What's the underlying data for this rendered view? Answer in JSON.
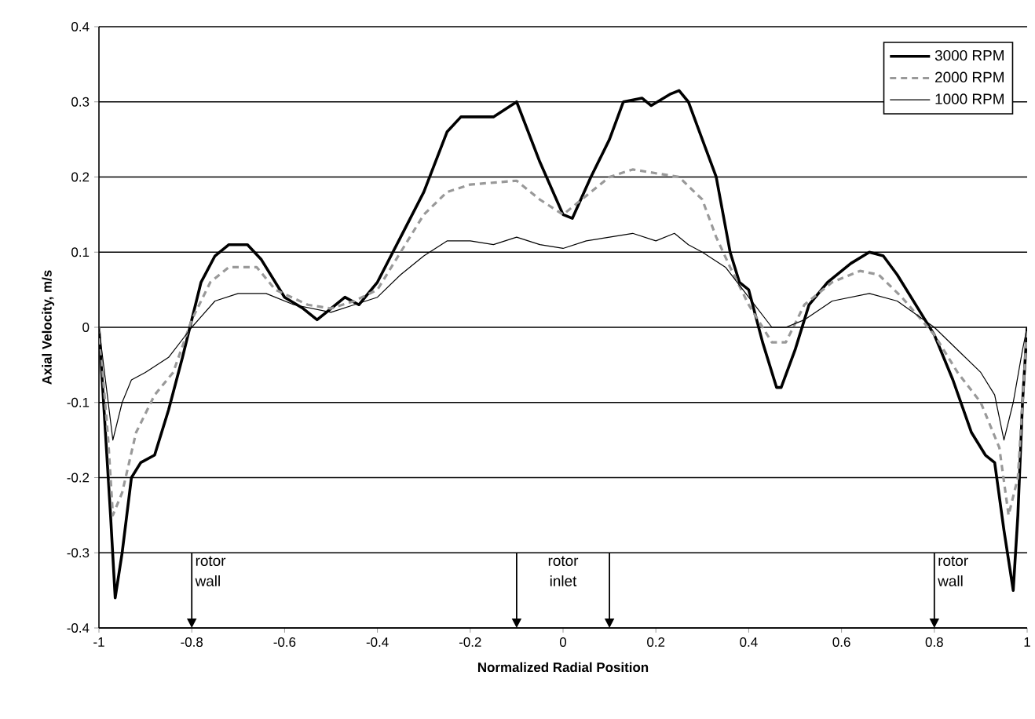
{
  "chart_data": {
    "type": "line",
    "xlabel": "Normalized Radial Position",
    "ylabel": "Axial Velocity, m/s",
    "xlim": [
      -1,
      1
    ],
    "ylim": [
      -0.4,
      0.4
    ],
    "xticks": [
      -1,
      -0.8,
      -0.6,
      -0.4,
      -0.2,
      0,
      0.2,
      0.4,
      0.6,
      0.8,
      1
    ],
    "yticks": [
      -0.4,
      -0.3,
      -0.2,
      -0.1,
      0,
      0.1,
      0.2,
      0.3,
      0.4
    ],
    "grid": "y",
    "legend": "top right",
    "series": [
      {
        "name": "3000 RPM",
        "color": "#000000",
        "line_style": "solid",
        "x": [
          -1,
          -0.99,
          -0.975,
          -0.965,
          -0.95,
          -0.93,
          -0.91,
          -0.88,
          -0.85,
          -0.82,
          -0.8,
          -0.78,
          -0.75,
          -0.72,
          -0.68,
          -0.65,
          -0.6,
          -0.56,
          -0.53,
          -0.5,
          -0.47,
          -0.44,
          -0.4,
          -0.35,
          -0.3,
          -0.25,
          -0.22,
          -0.15,
          -0.1,
          -0.05,
          0,
          0.02,
          0.06,
          0.1,
          0.13,
          0.17,
          0.19,
          0.23,
          0.25,
          0.27,
          0.3,
          0.33,
          0.36,
          0.38,
          0.4,
          0.43,
          0.46,
          0.47,
          0.5,
          0.53,
          0.57,
          0.62,
          0.66,
          0.69,
          0.72,
          0.77,
          0.8,
          0.84,
          0.88,
          0.91,
          0.93,
          0.95,
          0.97,
          0.98,
          0.99,
          1
        ],
        "values": [
          0,
          -0.1,
          -0.25,
          -0.36,
          -0.3,
          -0.2,
          -0.18,
          -0.17,
          -0.11,
          -0.04,
          0.01,
          0.06,
          0.095,
          0.11,
          0.11,
          0.09,
          0.04,
          0.025,
          0.01,
          0.025,
          0.04,
          0.03,
          0.06,
          0.12,
          0.18,
          0.26,
          0.28,
          0.28,
          0.3,
          0.22,
          0.15,
          0.145,
          0.2,
          0.25,
          0.3,
          0.305,
          0.295,
          0.31,
          0.315,
          0.3,
          0.25,
          0.2,
          0.1,
          0.06,
          0.05,
          -0.02,
          -0.08,
          -0.08,
          -0.03,
          0.03,
          0.06,
          0.085,
          0.1,
          0.095,
          0.07,
          0.02,
          -0.01,
          -0.07,
          -0.14,
          -0.17,
          -0.18,
          -0.27,
          -0.35,
          -0.25,
          -0.1,
          0
        ]
      },
      {
        "name": "2000 RPM",
        "color": "#999999",
        "line_style": "dashed",
        "x": [
          -1,
          -0.98,
          -0.97,
          -0.95,
          -0.92,
          -0.88,
          -0.84,
          -0.8,
          -0.76,
          -0.72,
          -0.66,
          -0.62,
          -0.55,
          -0.5,
          -0.45,
          -0.4,
          -0.35,
          -0.3,
          -0.25,
          -0.2,
          -0.1,
          -0.05,
          0,
          0.05,
          0.1,
          0.15,
          0.2,
          0.25,
          0.3,
          0.33,
          0.36,
          0.4,
          0.45,
          0.48,
          0.52,
          0.58,
          0.64,
          0.68,
          0.73,
          0.8,
          0.85,
          0.9,
          0.94,
          0.96,
          0.98,
          1
        ],
        "values": [
          0,
          -0.15,
          -0.25,
          -0.22,
          -0.14,
          -0.09,
          -0.06,
          0.01,
          0.06,
          0.08,
          0.08,
          0.05,
          0.03,
          0.025,
          0.035,
          0.05,
          0.1,
          0.15,
          0.18,
          0.19,
          0.195,
          0.17,
          0.15,
          0.175,
          0.2,
          0.21,
          0.205,
          0.2,
          0.17,
          0.12,
          0.08,
          0.03,
          -0.02,
          -0.02,
          0.03,
          0.06,
          0.075,
          0.07,
          0.04,
          -0.01,
          -0.06,
          -0.1,
          -0.16,
          -0.25,
          -0.2,
          0
        ]
      },
      {
        "name": "1000 RPM",
        "color": "#000000",
        "line_style": "solid",
        "x": [
          -1,
          -0.98,
          -0.97,
          -0.95,
          -0.93,
          -0.9,
          -0.85,
          -0.8,
          -0.75,
          -0.7,
          -0.64,
          -0.58,
          -0.5,
          -0.45,
          -0.4,
          -0.35,
          -0.3,
          -0.25,
          -0.2,
          -0.15,
          -0.1,
          -0.05,
          0,
          0.05,
          0.1,
          0.15,
          0.2,
          0.24,
          0.27,
          0.3,
          0.35,
          0.4,
          0.45,
          0.48,
          0.52,
          0.58,
          0.66,
          0.72,
          0.8,
          0.85,
          0.9,
          0.93,
          0.95,
          0.97,
          0.99,
          1
        ],
        "values": [
          0,
          -0.1,
          -0.15,
          -0.1,
          -0.07,
          -0.06,
          -0.04,
          0,
          0.035,
          0.045,
          0.045,
          0.03,
          0.02,
          0.03,
          0.04,
          0.07,
          0.095,
          0.115,
          0.115,
          0.11,
          0.12,
          0.11,
          0.105,
          0.115,
          0.12,
          0.125,
          0.115,
          0.125,
          0.11,
          0.1,
          0.08,
          0.04,
          0,
          0,
          0.01,
          0.035,
          0.045,
          0.035,
          0,
          -0.03,
          -0.06,
          -0.09,
          -0.15,
          -0.1,
          -0.03,
          0
        ]
      }
    ],
    "ref_lines": [
      {
        "axis": "x",
        "value": -0.8
      },
      {
        "axis": "x",
        "value": -0.1
      },
      {
        "axis": "x",
        "value": 0.1
      },
      {
        "axis": "x",
        "value": 0.8
      }
    ],
    "annotations": [
      {
        "text": "rotor wall",
        "x": -0.8,
        "y": -0.3
      },
      "rotor inlet",
      {
        "text": "rotor wall",
        "x": 0.8,
        "y": -0.3
      }
    ]
  }
}
